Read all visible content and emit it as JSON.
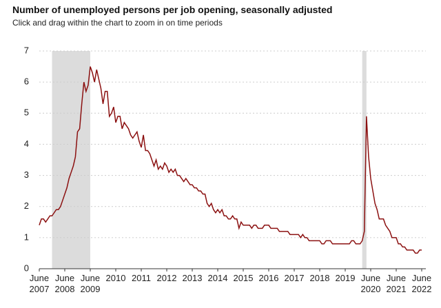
{
  "chart_data": {
    "type": "line",
    "title": "Number of unemployed persons per job opening, seasonally adjusted",
    "subtitle": "Click and drag within the chart to zoom in on time periods",
    "x": [
      "2007-06",
      "2007-07",
      "2007-08",
      "2007-09",
      "2007-10",
      "2007-11",
      "2007-12",
      "2008-01",
      "2008-02",
      "2008-03",
      "2008-04",
      "2008-05",
      "2008-06",
      "2008-07",
      "2008-08",
      "2008-09",
      "2008-10",
      "2008-11",
      "2008-12",
      "2009-01",
      "2009-02",
      "2009-03",
      "2009-04",
      "2009-05",
      "2009-06",
      "2009-07",
      "2009-08",
      "2009-09",
      "2009-10",
      "2009-11",
      "2009-12",
      "2010-01",
      "2010-02",
      "2010-03",
      "2010-04",
      "2010-05",
      "2010-06",
      "2010-07",
      "2010-08",
      "2010-09",
      "2010-10",
      "2010-11",
      "2010-12",
      "2011-01",
      "2011-02",
      "2011-03",
      "2011-04",
      "2011-05",
      "2011-06",
      "2011-07",
      "2011-08",
      "2011-09",
      "2011-10",
      "2011-11",
      "2011-12",
      "2012-01",
      "2012-02",
      "2012-03",
      "2012-04",
      "2012-05",
      "2012-06",
      "2012-07",
      "2012-08",
      "2012-09",
      "2012-10",
      "2012-11",
      "2012-12",
      "2013-01",
      "2013-02",
      "2013-03",
      "2013-04",
      "2013-05",
      "2013-06",
      "2013-07",
      "2013-08",
      "2013-09",
      "2013-10",
      "2013-11",
      "2013-12",
      "2014-01",
      "2014-02",
      "2014-03",
      "2014-04",
      "2014-05",
      "2014-06",
      "2014-07",
      "2014-08",
      "2014-09",
      "2014-10",
      "2014-11",
      "2014-12",
      "2015-01",
      "2015-02",
      "2015-03",
      "2015-04",
      "2015-05",
      "2015-06",
      "2015-07",
      "2015-08",
      "2015-09",
      "2015-10",
      "2015-11",
      "2015-12",
      "2016-01",
      "2016-02",
      "2016-03",
      "2016-04",
      "2016-05",
      "2016-06",
      "2016-07",
      "2016-08",
      "2016-09",
      "2016-10",
      "2016-11",
      "2016-12",
      "2017-01",
      "2017-02",
      "2017-03",
      "2017-04",
      "2017-05",
      "2017-06",
      "2017-07",
      "2017-08",
      "2017-09",
      "2017-10",
      "2017-11",
      "2017-12",
      "2018-01",
      "2018-02",
      "2018-03",
      "2018-04",
      "2018-05",
      "2018-06",
      "2018-07",
      "2018-08",
      "2018-09",
      "2018-10",
      "2018-11",
      "2018-12",
      "2019-01",
      "2019-02",
      "2019-03",
      "2019-04",
      "2019-05",
      "2019-06",
      "2019-07",
      "2019-08",
      "2019-09",
      "2019-10",
      "2019-11",
      "2019-12",
      "2020-01",
      "2020-02",
      "2020-03",
      "2020-04",
      "2020-05",
      "2020-06",
      "2020-07",
      "2020-08",
      "2020-09",
      "2020-10",
      "2020-11",
      "2020-12",
      "2021-01",
      "2021-02",
      "2021-03",
      "2021-04",
      "2021-05",
      "2021-06",
      "2021-07",
      "2021-08",
      "2021-09",
      "2021-10",
      "2021-11",
      "2021-12",
      "2022-01",
      "2022-02",
      "2022-03",
      "2022-04",
      "2022-05",
      "2022-06"
    ],
    "series": [
      {
        "color": "#8b1010",
        "values": [
          1.4,
          1.6,
          1.6,
          1.5,
          1.6,
          1.7,
          1.7,
          1.8,
          1.9,
          1.9,
          2.0,
          2.2,
          2.4,
          2.6,
          2.9,
          3.1,
          3.3,
          3.6,
          4.4,
          4.5,
          5.3,
          6.0,
          5.7,
          5.9,
          6.5,
          6.3,
          6.0,
          6.4,
          6.1,
          5.8,
          5.3,
          5.7,
          5.7,
          4.9,
          5.0,
          5.2,
          4.7,
          4.9,
          4.9,
          4.5,
          4.7,
          4.6,
          4.5,
          4.3,
          4.2,
          4.3,
          4.4,
          4.1,
          3.9,
          4.3,
          3.8,
          3.8,
          3.7,
          3.5,
          3.3,
          3.5,
          3.2,
          3.3,
          3.2,
          3.4,
          3.3,
          3.1,
          3.2,
          3.1,
          3.2,
          3.0,
          3.0,
          2.9,
          2.8,
          2.9,
          2.8,
          2.7,
          2.7,
          2.6,
          2.6,
          2.5,
          2.5,
          2.4,
          2.4,
          2.1,
          2.0,
          2.1,
          1.9,
          1.8,
          1.9,
          1.8,
          1.9,
          1.7,
          1.7,
          1.6,
          1.6,
          1.7,
          1.6,
          1.6,
          1.3,
          1.5,
          1.4,
          1.4,
          1.4,
          1.4,
          1.3,
          1.4,
          1.4,
          1.3,
          1.3,
          1.3,
          1.4,
          1.4,
          1.4,
          1.3,
          1.3,
          1.3,
          1.3,
          1.2,
          1.2,
          1.2,
          1.2,
          1.2,
          1.1,
          1.1,
          1.1,
          1.1,
          1.1,
          1.0,
          1.1,
          1.0,
          1.0,
          0.9,
          0.9,
          0.9,
          0.9,
          0.9,
          0.9,
          0.8,
          0.8,
          0.9,
          0.9,
          0.9,
          0.8,
          0.8,
          0.8,
          0.8,
          0.8,
          0.8,
          0.8,
          0.8,
          0.8,
          0.9,
          0.9,
          0.8,
          0.8,
          0.8,
          0.9,
          1.2,
          4.9,
          3.6,
          2.9,
          2.5,
          2.1,
          1.9,
          1.6,
          1.6,
          1.6,
          1.4,
          1.3,
          1.2,
          1.0,
          1.0,
          1.0,
          0.8,
          0.8,
          0.7,
          0.7,
          0.6,
          0.6,
          0.6,
          0.6,
          0.5,
          0.5,
          0.6,
          0.6
        ]
      }
    ],
    "shaded_regions": [
      [
        "2007-12",
        "2009-06"
      ],
      [
        "2020-02",
        "2020-04"
      ]
    ],
    "shade_color": "#dcdcdc",
    "xlim": [
      "2007-06",
      "2022-06"
    ],
    "xticks": [
      {
        "value": "2007-06",
        "label": "June 2007"
      },
      {
        "value": "2008-06",
        "label": "June 2008"
      },
      {
        "value": "2009-06",
        "label": "June 2009"
      },
      {
        "value": "2010-06",
        "label": "2010"
      },
      {
        "value": "2011-06",
        "label": "2011"
      },
      {
        "value": "2012-06",
        "label": "2012"
      },
      {
        "value": "2013-06",
        "label": "2013"
      },
      {
        "value": "2014-06",
        "label": "2014"
      },
      {
        "value": "2015-06",
        "label": "2015"
      },
      {
        "value": "2016-06",
        "label": "2016"
      },
      {
        "value": "2017-06",
        "label": "2017"
      },
      {
        "value": "2018-06",
        "label": "2018"
      },
      {
        "value": "2019-06",
        "label": "2019"
      },
      {
        "value": "2020-06",
        "label": "June 2020"
      },
      {
        "value": "2021-06",
        "label": "June 2021"
      },
      {
        "value": "2022-06",
        "label": "June 2022"
      }
    ],
    "ylim": [
      0,
      7
    ],
    "yticks": [
      0,
      1,
      2,
      3,
      4,
      5,
      6,
      7
    ],
    "grid": true
  }
}
